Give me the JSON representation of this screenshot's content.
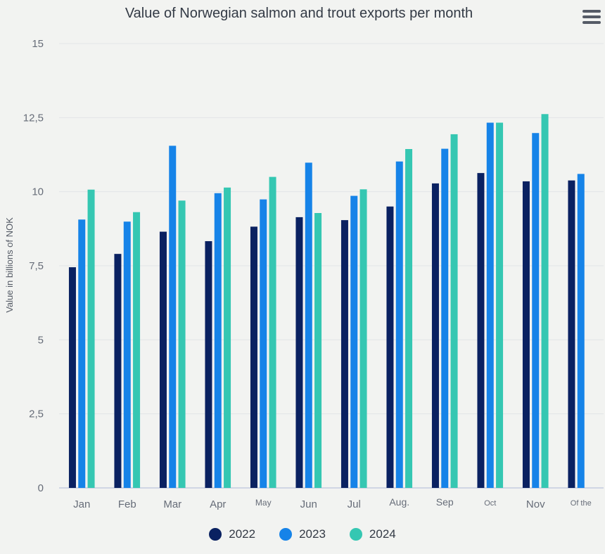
{
  "title": "Value of Norwegian salmon and trout exports per month",
  "menu_icon": "hamburger-menu-icon",
  "colors": {
    "2022": "#0a2161",
    "2023": "#1683e8",
    "2024": "#35c7b2",
    "grid": "#e2e4e6",
    "axis": "#c5cbe0"
  },
  "chart_data": {
    "type": "bar",
    "title": "Value of Norwegian salmon and trout exports per month",
    "ylabel": "Value in billions of NOK",
    "xlabel": "",
    "ylim": [
      0,
      15
    ],
    "yticks": [
      "0",
      "2,5",
      "5",
      "7,5",
      "10",
      "12,5",
      "15"
    ],
    "ytick_values": [
      0,
      2.5,
      5,
      7.5,
      10,
      12.5,
      15
    ],
    "grid": true,
    "legend_position": "bottom-center",
    "categories": [
      "Jan",
      "Feb",
      "Mar",
      "Apr",
      "May",
      "Jun",
      "Jul",
      "Aug.",
      "Sep",
      "Oct",
      "Nov",
      "Of the"
    ],
    "series": [
      {
        "name": "2022",
        "values": [
          7.45,
          7.9,
          8.65,
          8.33,
          8.82,
          9.14,
          9.04,
          9.5,
          10.28,
          10.63,
          10.35,
          10.38
        ]
      },
      {
        "name": "2023",
        "values": [
          9.06,
          8.99,
          11.55,
          9.95,
          9.74,
          10.98,
          9.86,
          11.02,
          11.45,
          12.33,
          11.98,
          10.6
        ]
      },
      {
        "name": "2024",
        "values": [
          10.07,
          9.31,
          9.7,
          10.14,
          10.5,
          9.28,
          10.08,
          11.44,
          11.94,
          12.33,
          12.62,
          null
        ]
      }
    ]
  },
  "legend": [
    {
      "label": "2022"
    },
    {
      "label": "2023"
    },
    {
      "label": "2024"
    }
  ]
}
